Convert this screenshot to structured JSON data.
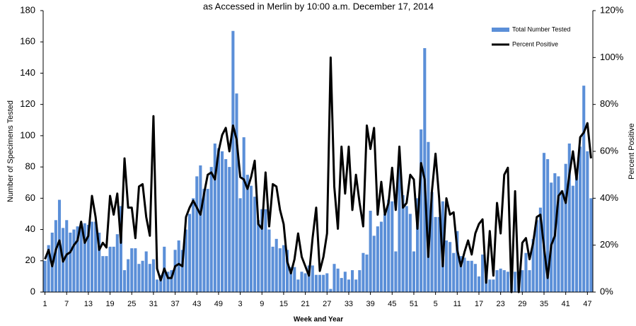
{
  "chart_data": {
    "type": "bar",
    "title": "as Accessed in Merlin by  10:00 a.m. December 17, 2014",
    "x_label": "Week and Year",
    "y_label": "Number of Specimens Tested",
    "y2_label": "Percent Positive",
    "legend": "upper right",
    "categories": [
      "1",
      null,
      null,
      null,
      null,
      null,
      "7",
      null,
      null,
      null,
      null,
      null,
      "13",
      null,
      null,
      null,
      null,
      null,
      "19",
      null,
      null,
      null,
      null,
      null,
      "25",
      null,
      null,
      null,
      null,
      null,
      "31",
      null,
      null,
      null,
      null,
      null,
      "37",
      null,
      null,
      null,
      null,
      null,
      "43",
      null,
      null,
      null,
      null,
      null,
      "49",
      null,
      null,
      null,
      null,
      null,
      "3",
      null,
      null,
      null,
      null,
      null,
      "9",
      null,
      null,
      null,
      null,
      null,
      "15",
      null,
      null,
      null,
      null,
      null,
      "21",
      null,
      null,
      null,
      null,
      null,
      "27",
      null,
      null,
      null,
      null,
      null,
      "33",
      null,
      null,
      null,
      null,
      null,
      "39",
      null,
      null,
      null,
      null,
      null,
      "45",
      null,
      null,
      null,
      null,
      null,
      "51",
      null,
      null,
      null,
      null,
      null,
      "5",
      null,
      null,
      null,
      null,
      null,
      "11",
      null,
      null,
      null,
      null,
      null,
      "17",
      null,
      null,
      null,
      null,
      null,
      "23",
      null,
      null,
      null,
      null,
      null,
      "29",
      null,
      null,
      null,
      null,
      null,
      "35",
      null,
      null,
      null,
      null,
      null,
      "41",
      null,
      null,
      null,
      null,
      null,
      "47",
      null
    ],
    "series": [
      {
        "name": "Total Number Tested",
        "type": "bar",
        "color": "#5b8fd8",
        "values": [
          20,
          30,
          38,
          46,
          59,
          41,
          46,
          38,
          40,
          42,
          44,
          44,
          43,
          45,
          45,
          38,
          23,
          23,
          29,
          29,
          37,
          55,
          14,
          21,
          28,
          28,
          18,
          20,
          26,
          18,
          21,
          8,
          11,
          29,
          13,
          14,
          27,
          33,
          27,
          40,
          50,
          60,
          74,
          81,
          66,
          66,
          80,
          95,
          92,
          90,
          85,
          80,
          167,
          127,
          60,
          99,
          75,
          68,
          61,
          46,
          53,
          53,
          40,
          29,
          34,
          28,
          30,
          27,
          16,
          16,
          8,
          13,
          12,
          17,
          17,
          11,
          11,
          11,
          12,
          2,
          18,
          15,
          9,
          13,
          8,
          14,
          8,
          14,
          25,
          24,
          52,
          36,
          42,
          45,
          50,
          59,
          58,
          26,
          83,
          62,
          55,
          50,
          26,
          60,
          104,
          156,
          96,
          64,
          48,
          48,
          58,
          33,
          32,
          25,
          39,
          23,
          22,
          20,
          20,
          18,
          10,
          24,
          16,
          8,
          8,
          14,
          15,
          14,
          13,
          14,
          13,
          7,
          14,
          25,
          14,
          34,
          46,
          54,
          89,
          85,
          70,
          76,
          74,
          65,
          82,
          95,
          68,
          74,
          93,
          132,
          90,
          60
        ]
      },
      {
        "name": "Percent Positive",
        "type": "line",
        "axis": "y2",
        "color": "#000000",
        "values": [
          14,
          18,
          11,
          18,
          22,
          13,
          16,
          17,
          20,
          22,
          30,
          21,
          24,
          41,
          32,
          18,
          21,
          19,
          41,
          33,
          42,
          21,
          57,
          36,
          36,
          23,
          45,
          46,
          32,
          24,
          75,
          10,
          5,
          10,
          6,
          6,
          11,
          12,
          11,
          32,
          36,
          39,
          36,
          33,
          42,
          50,
          51,
          48,
          60,
          67,
          70,
          60,
          71,
          65,
          49,
          48,
          44,
          49,
          56,
          29,
          27,
          51,
          28,
          46,
          45,
          35,
          29,
          13,
          8,
          14,
          25,
          15,
          11,
          7,
          23,
          36,
          9,
          15,
          25,
          100,
          45,
          27,
          62,
          42,
          62,
          35,
          50,
          38,
          28,
          71,
          61,
          70,
          33,
          47,
          33,
          38,
          53,
          35,
          62,
          36,
          38,
          50,
          48,
          27,
          55,
          48,
          15,
          43,
          59,
          40,
          11,
          40,
          33,
          34,
          18,
          11,
          17,
          22,
          16,
          25,
          29,
          31,
          4,
          26,
          7,
          38,
          25,
          50,
          53,
          0,
          43,
          0,
          21,
          23,
          14,
          21,
          32,
          33,
          19,
          6,
          20,
          24,
          41,
          43,
          38,
          50,
          60,
          48,
          66,
          68,
          72,
          57
        ]
      }
    ],
    "ylim": [
      0,
      180
    ],
    "yticks": [
      0,
      20,
      40,
      60,
      80,
      100,
      120,
      140,
      160,
      180
    ],
    "y2lim": [
      0,
      120
    ],
    "y2ticks": [
      {
        "value": 0,
        "label": "0%"
      },
      {
        "value": 20,
        "label": "20%"
      },
      {
        "value": 40,
        "label": "40%"
      },
      {
        "value": 60,
        "label": "60%"
      },
      {
        "value": 80,
        "label": "80%"
      },
      {
        "value": 100,
        "label": "100%"
      },
      {
        "value": 120,
        "label": "120%"
      }
    ]
  }
}
